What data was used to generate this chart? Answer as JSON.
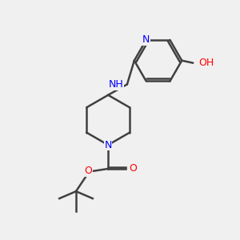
{
  "bg_color": "#f0f0f0",
  "bond_color": "#404040",
  "bond_width": 1.8,
  "atom_colors": {
    "N": "#0000ff",
    "O": "#ff0000",
    "C": "#404040",
    "H": "#404040"
  },
  "font_size": 9,
  "fig_size": [
    3.0,
    3.0
  ],
  "dpi": 100
}
